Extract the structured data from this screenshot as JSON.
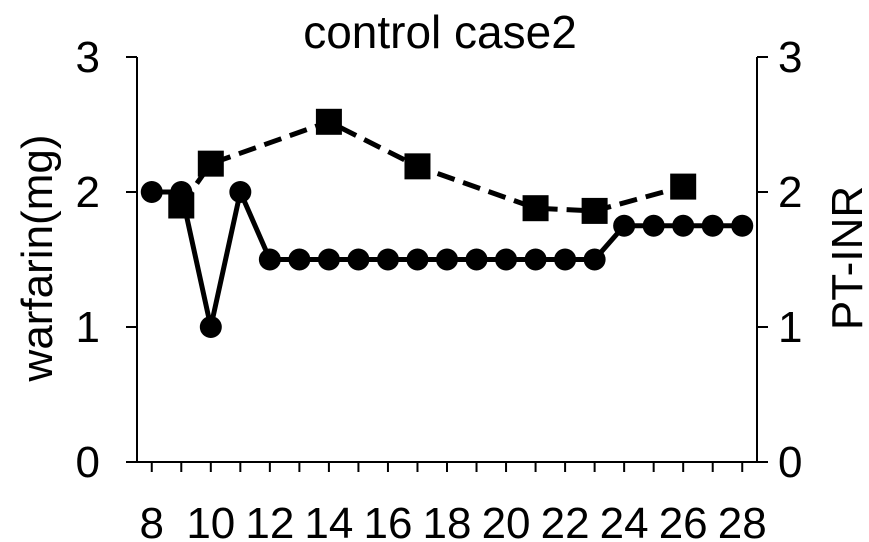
{
  "chart_data": {
    "type": "line",
    "title": "control case2",
    "xlabel": "",
    "ylabel": "warfarin(mg)",
    "ylabel_right": "PT-INR",
    "xlim": [
      7.5,
      28.5
    ],
    "ylim": [
      0,
      3
    ],
    "ylim_right": [
      0,
      3
    ],
    "x_ticks": [
      "8",
      "10",
      "12",
      "14",
      "16",
      "18",
      "20",
      "22",
      "24",
      "26",
      "28"
    ],
    "y_ticks": [
      "0",
      "1",
      "2",
      "3"
    ],
    "y_ticks_right": [
      "0",
      "1",
      "2",
      "3"
    ],
    "grid": false,
    "legend": "none",
    "series": [
      {
        "axis": "left",
        "marker": "circle",
        "line": "solid",
        "color": "#000000",
        "points": [
          [
            8,
            2
          ],
          [
            9,
            2
          ],
          [
            10,
            1
          ],
          [
            11,
            2
          ],
          [
            12,
            1.5
          ],
          [
            13,
            1.5
          ],
          [
            14,
            1.5
          ],
          [
            15,
            1.5
          ],
          [
            16,
            1.5
          ],
          [
            17,
            1.5
          ],
          [
            18,
            1.5
          ],
          [
            19,
            1.5
          ],
          [
            20,
            1.5
          ],
          [
            21,
            1.5
          ],
          [
            22,
            1.5
          ],
          [
            23,
            1.5
          ],
          [
            24,
            1.75
          ],
          [
            25,
            1.75
          ],
          [
            26,
            1.75
          ],
          [
            27,
            1.75
          ],
          [
            28,
            1.75
          ]
        ]
      },
      {
        "axis": "right",
        "marker": "square",
        "line": "dashed",
        "color": "#000000",
        "points": [
          [
            9,
            1.9
          ],
          [
            10,
            2.21
          ],
          [
            14,
            2.52
          ],
          [
            17,
            2.19
          ],
          [
            21,
            1.88
          ],
          [
            23,
            1.86
          ],
          [
            26,
            2.04
          ]
        ]
      }
    ]
  }
}
